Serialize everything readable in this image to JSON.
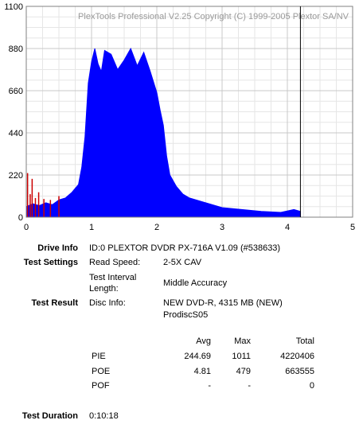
{
  "chart_data": {
    "type": "area",
    "title": "PlexTools Professional V2.25 Copyright (C) 1999-2005 Plextor SA/NV",
    "xlim": [
      0,
      5
    ],
    "ylim": [
      0,
      1100
    ],
    "x_ticks": [
      "0",
      "1",
      "2",
      "3",
      "4",
      "5"
    ],
    "y_ticks": [
      "1100",
      "880",
      "660",
      "440",
      "220",
      "0"
    ],
    "grid": true,
    "end_marker_x": 4.2,
    "series": [
      {
        "color": "#0000ff",
        "x": [
          0.0,
          0.1,
          0.2,
          0.3,
          0.4,
          0.5,
          0.6,
          0.7,
          0.8,
          0.85,
          0.9,
          0.95,
          1.0,
          1.05,
          1.1,
          1.15,
          1.2,
          1.3,
          1.4,
          1.5,
          1.6,
          1.7,
          1.8,
          1.9,
          2.0,
          2.05,
          2.1,
          2.15,
          2.2,
          2.3,
          2.4,
          2.5,
          2.7,
          3.0,
          3.3,
          3.6,
          3.9,
          4.1,
          4.2
        ],
        "values": [
          55,
          70,
          60,
          75,
          65,
          90,
          100,
          130,
          170,
          260,
          420,
          700,
          810,
          880,
          800,
          760,
          870,
          850,
          770,
          820,
          880,
          790,
          860,
          760,
          650,
          560,
          480,
          320,
          220,
          160,
          120,
          100,
          80,
          50,
          40,
          30,
          25,
          40,
          30
        ]
      },
      {
        "color": "#cc0000",
        "x": [
          0.02,
          0.06,
          0.09,
          0.14,
          0.19,
          0.27,
          0.37,
          0.5
        ],
        "values": [
          230,
          120,
          200,
          100,
          130,
          95,
          90,
          110
        ]
      }
    ]
  },
  "drive_info": {
    "label": "Drive Info",
    "value": "ID:0 PLEXTOR DVDR PX-716A V1.09 (#538633)"
  },
  "test_settings": {
    "label": "Test Settings",
    "read_speed_label": "Read Speed:",
    "read_speed_value": "2-5X CAV",
    "interval_label_1": "Test Interval",
    "interval_label_2": "Length:",
    "interval_value": "Middle Accuracy"
  },
  "test_result": {
    "label": "Test Result",
    "disc_info_label": "Disc Info:",
    "disc_info_line1": "NEW DVD-R, 4315 MB (NEW)",
    "disc_info_line2": "ProdiscS05"
  },
  "results_table": {
    "headers": [
      "Avg",
      "Max",
      "Total"
    ],
    "rows": [
      {
        "name": "PIE",
        "avg": "244.69",
        "max": "1011",
        "total": "4220406"
      },
      {
        "name": "POE",
        "avg": "4.81",
        "max": "479",
        "total": "663555"
      },
      {
        "name": "POF",
        "avg": "-",
        "max": "-",
        "total": "0"
      }
    ]
  },
  "test_duration": {
    "label": "Test Duration",
    "value": "0:10:18"
  }
}
